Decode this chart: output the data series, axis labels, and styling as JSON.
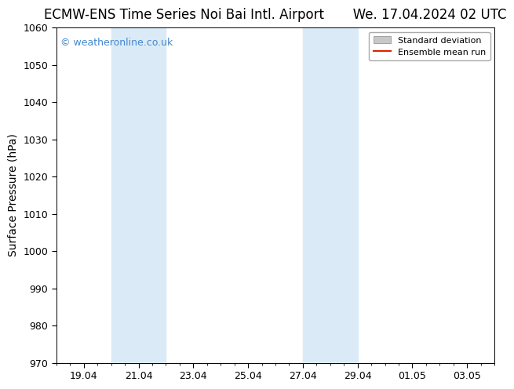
{
  "title": "ECMW-ENS Time Series Noi Bai Intl. Airport       We. 17.04.2024 02 UTC",
  "ylabel": "Surface Pressure (hPa)",
  "ylim": [
    970,
    1060
  ],
  "yticks": [
    970,
    980,
    990,
    1000,
    1010,
    1020,
    1030,
    1040,
    1050,
    1060
  ],
  "xtick_labels": [
    "19.04",
    "21.04",
    "23.04",
    "25.04",
    "27.04",
    "29.04",
    "01.05",
    "03.05"
  ],
  "xtick_positions": [
    18.5,
    20.5,
    22.5,
    24.5,
    26.5,
    28.5,
    30.5,
    32.5
  ],
  "xlim": [
    17.5,
    33.5
  ],
  "shade_bands": [
    {
      "x_start": 19.5,
      "x_end": 21.5
    },
    {
      "x_start": 26.5,
      "x_end": 28.5
    }
  ],
  "shade_color": "#daeaf7",
  "watermark_text": "© weatheronline.co.uk",
  "watermark_color": "#4488cc",
  "legend_label_std": "Standard deviation",
  "legend_label_ens": "Ensemble mean run",
  "legend_color_std": "#c8c8c8",
  "legend_color_ens": "#dd2200",
  "bg_color": "#ffffff",
  "title_fontsize": 12,
  "tick_fontsize": 9,
  "ylabel_fontsize": 10,
  "minor_tick_interval": 0.5
}
